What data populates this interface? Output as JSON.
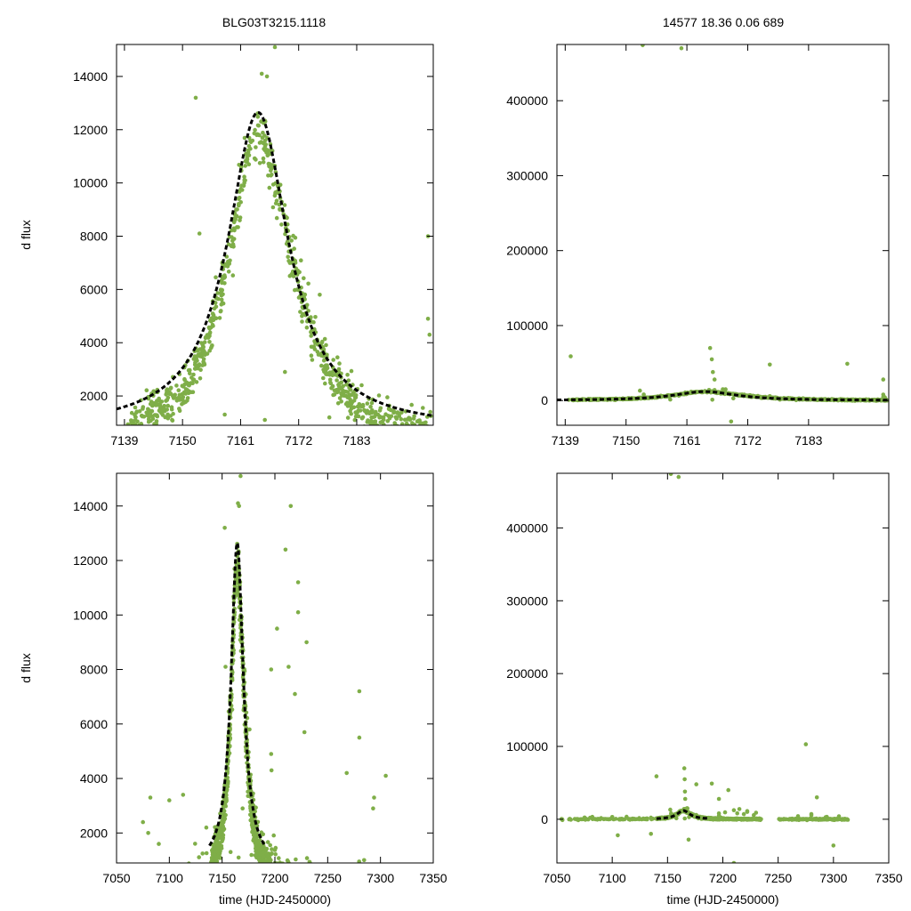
{
  "figure": {
    "left_title": "BLG03T3215.1118",
    "right_title": "14577  18.36  0.06  689"
  },
  "colors": {
    "points": "#7fae48",
    "model": "#000000",
    "frame": "#000000",
    "background": "#ffffff"
  },
  "chart_data": [
    {
      "id": "top-left",
      "type": "scatter",
      "title": "BLG03T3215.1118",
      "xlabel": "",
      "ylabel": "d flux",
      "xlim": [
        7137.5,
        7197.5
      ],
      "ylim": [
        900,
        15200
      ],
      "xticks": [
        7139,
        7150,
        7161,
        7172,
        7183
      ],
      "yticks": [
        2000,
        4000,
        6000,
        8000,
        10000,
        12000,
        14000
      ],
      "model": {
        "t0": 7164.3,
        "peak": 11900,
        "base": 750,
        "tE": 7.0
      },
      "series": [
        {
          "name": "data",
          "kind": "scatter"
        },
        {
          "name": "model",
          "kind": "line",
          "style": "dashed"
        }
      ]
    },
    {
      "id": "top-right",
      "type": "scatter",
      "title": "14577  18.36  0.06  689",
      "xlabel": "",
      "ylabel": "",
      "xlim": [
        7137.5,
        7197.5
      ],
      "ylim": [
        -33000,
        475000
      ],
      "xticks": [
        7139,
        7150,
        7161,
        7172,
        7183
      ],
      "yticks": [
        0,
        100000,
        200000,
        300000,
        400000
      ],
      "model": {
        "t0": 7164.3,
        "peak": 11900,
        "base": 0,
        "tE": 7.0
      },
      "series": [
        {
          "name": "data",
          "kind": "scatter"
        },
        {
          "name": "model",
          "kind": "line",
          "style": "dashed"
        }
      ]
    },
    {
      "id": "bottom-left",
      "type": "scatter",
      "title": "",
      "xlabel": "time (HJD-2450000)",
      "ylabel": "d flux",
      "xlim": [
        7050,
        7350
      ],
      "ylim": [
        900,
        15200
      ],
      "xticks": [
        7050,
        7100,
        7150,
        7200,
        7250,
        7300,
        7350
      ],
      "yticks": [
        2000,
        4000,
        6000,
        8000,
        10000,
        12000,
        14000
      ],
      "model": {
        "t0": 7164.3,
        "peak": 11900,
        "base": 750,
        "tE": 7.0
      },
      "series": [
        {
          "name": "data",
          "kind": "scatter"
        },
        {
          "name": "model",
          "kind": "line",
          "style": "dashed"
        }
      ]
    },
    {
      "id": "bottom-right",
      "type": "scatter",
      "title": "",
      "xlabel": "time (HJD-2450000)",
      "ylabel": "",
      "xlim": [
        7050,
        7350
      ],
      "ylim": [
        -60000,
        475000
      ],
      "xticks": [
        7050,
        7100,
        7150,
        7200,
        7250,
        7300,
        7350
      ],
      "yticks": [
        0,
        100000,
        200000,
        300000,
        400000
      ],
      "model": {
        "t0": 7164.3,
        "peak": 11900,
        "base": 0,
        "tE": 7.0
      },
      "series": [
        {
          "name": "data",
          "kind": "scatter"
        },
        {
          "name": "model",
          "kind": "line",
          "style": "dashed"
        }
      ]
    }
  ]
}
